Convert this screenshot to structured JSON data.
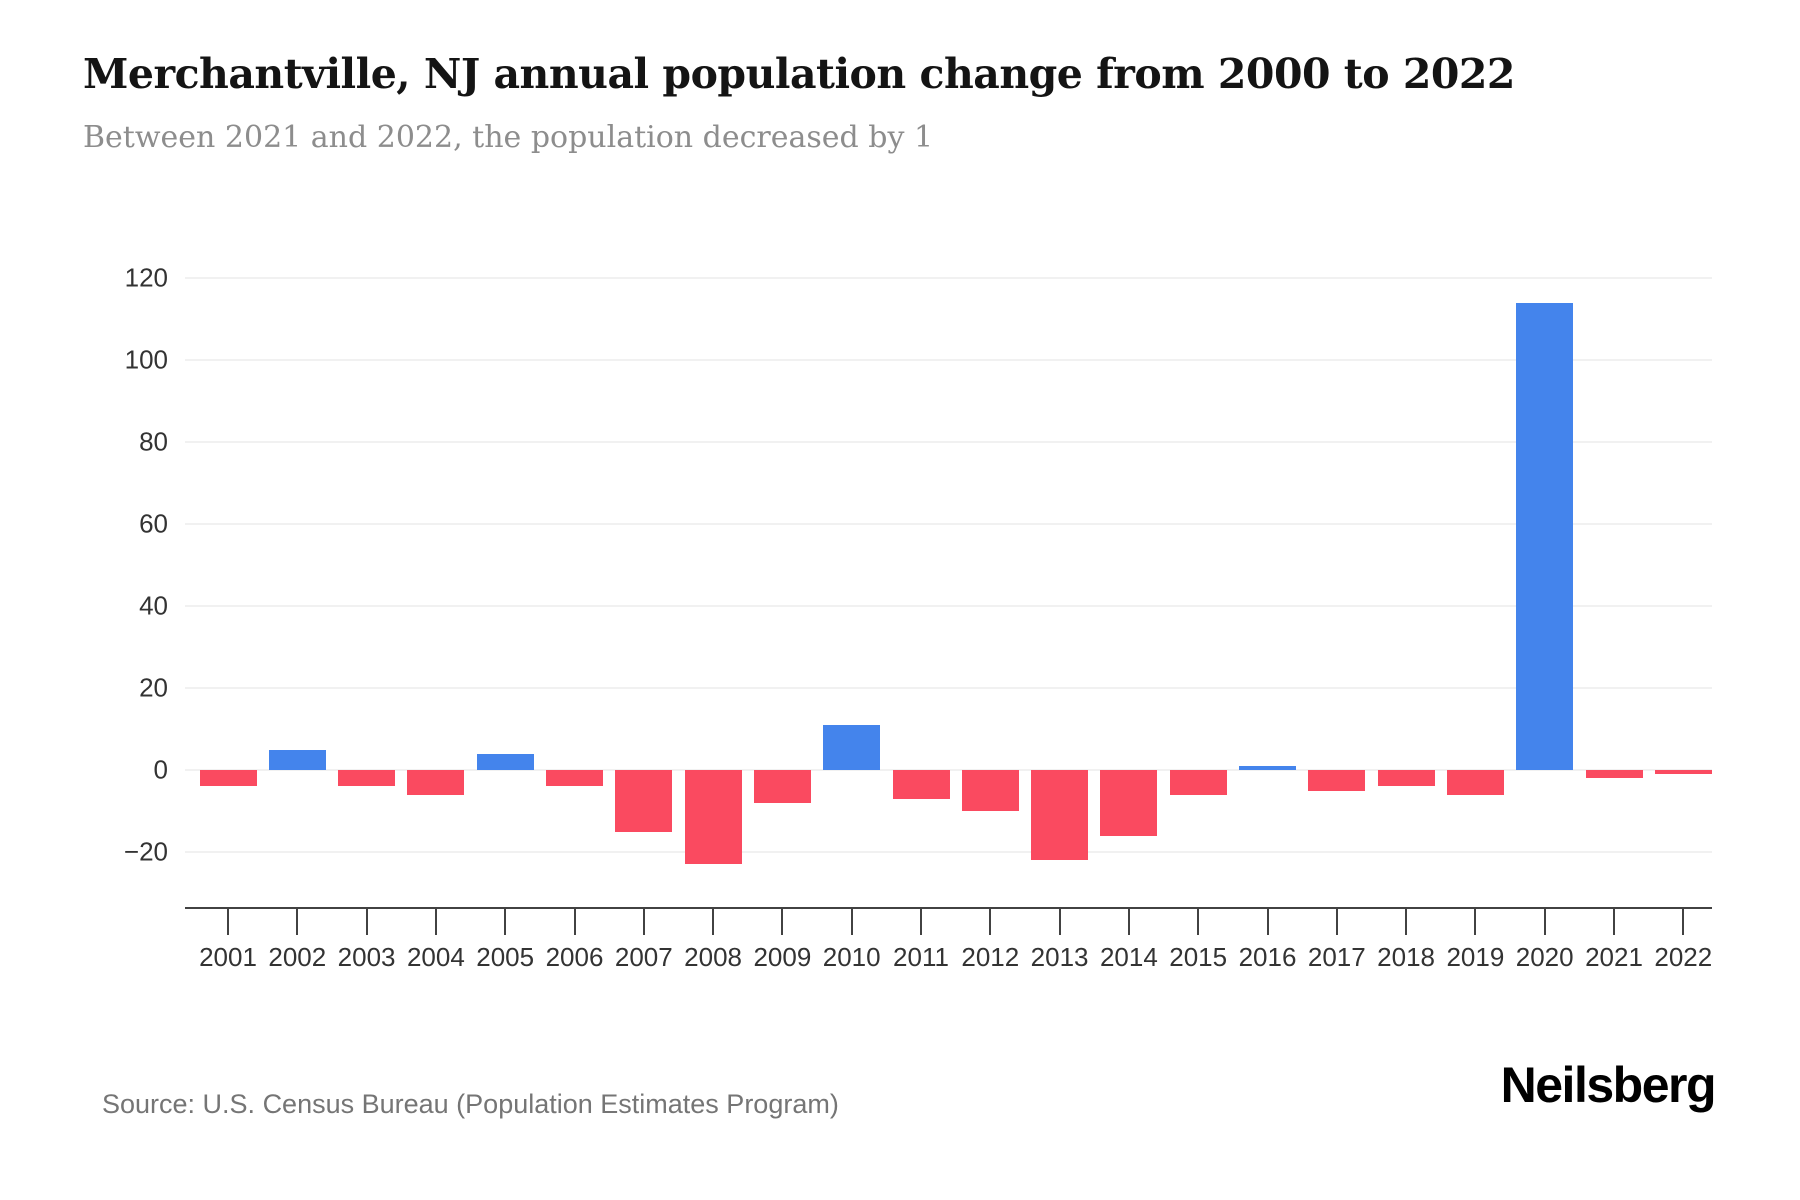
{
  "header": {
    "title": "Merchantville, NJ annual population change from 2000 to 2022",
    "subtitle": "Between 2021 and 2022, the population decreased by 1"
  },
  "footer": {
    "source": "Source: U.S. Census Bureau (Population Estimates Program)",
    "brand": "Neilsberg"
  },
  "chart_data": {
    "type": "bar",
    "title": "Merchantville, NJ annual population change from 2000 to 2022",
    "subtitle": "Between 2021 and 2022, the population decreased by 1",
    "xlabel": "",
    "ylabel": "",
    "categories": [
      "2001",
      "2002",
      "2003",
      "2004",
      "2005",
      "2006",
      "2007",
      "2008",
      "2009",
      "2010",
      "2011",
      "2012",
      "2013",
      "2014",
      "2015",
      "2016",
      "2017",
      "2018",
      "2019",
      "2020",
      "2021",
      "2022"
    ],
    "values": [
      -4,
      5,
      -4,
      -6,
      4,
      -4,
      -15,
      -23,
      -8,
      11,
      -7,
      -10,
      -22,
      -16,
      -6,
      1,
      -5,
      -4,
      -6,
      114,
      -2,
      -1
    ],
    "y_ticks": [
      -20,
      0,
      20,
      40,
      60,
      80,
      100,
      120
    ],
    "ylim": [
      -20,
      120
    ],
    "grid": true,
    "legend": false,
    "colors": {
      "positive": "#4484EC",
      "negative": "#FA4A60",
      "gridline": "#f1f1f1",
      "axis": "#424242",
      "tick_label": "#333333"
    }
  }
}
